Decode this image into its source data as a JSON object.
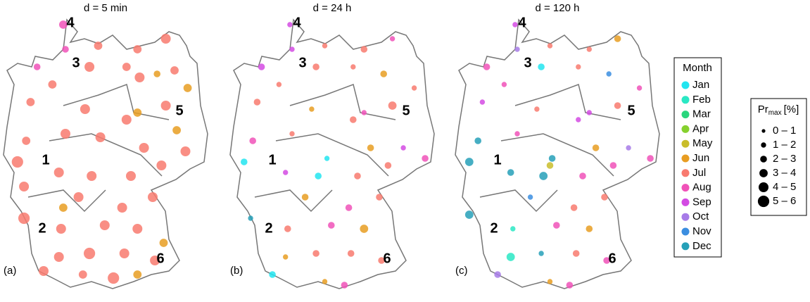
{
  "maps": [
    {
      "title": "d = 5 min",
      "tag": "(a)",
      "points": [
        [
          8.7,
          54.8,
          7,
          4
        ],
        [
          7.5,
          53.6,
          7,
          3
        ],
        [
          8.8,
          54.1,
          7,
          3
        ],
        [
          10.3,
          54.2,
          6,
          4
        ],
        [
          12.1,
          54.1,
          6,
          4
        ],
        [
          13.4,
          54.4,
          6,
          5
        ],
        [
          11.6,
          53.6,
          6,
          4
        ],
        [
          13.8,
          53.5,
          6,
          4
        ],
        [
          8.2,
          53.1,
          6,
          4
        ],
        [
          9.9,
          53.6,
          6,
          5
        ],
        [
          12.2,
          53.3,
          6,
          5
        ],
        [
          13.0,
          53.4,
          5,
          3
        ],
        [
          14.4,
          53.0,
          5,
          4
        ],
        [
          7.2,
          52.6,
          6,
          4
        ],
        [
          9.7,
          52.4,
          6,
          5
        ],
        [
          11.6,
          52.1,
          6,
          5
        ],
        [
          13.4,
          52.5,
          6,
          5
        ],
        [
          12.1,
          52.3,
          5,
          4
        ],
        [
          13.9,
          51.8,
          5,
          4
        ],
        [
          7.0,
          51.5,
          6,
          4
        ],
        [
          8.8,
          51.7,
          6,
          5
        ],
        [
          10.4,
          51.6,
          6,
          5
        ],
        [
          12.4,
          51.3,
          6,
          5
        ],
        [
          14.3,
          51.2,
          6,
          5
        ],
        [
          6.6,
          50.9,
          6,
          6
        ],
        [
          8.5,
          50.6,
          6,
          5
        ],
        [
          10.0,
          50.5,
          6,
          5
        ],
        [
          11.8,
          50.5,
          6,
          5
        ],
        [
          13.2,
          50.8,
          6,
          5
        ],
        [
          6.9,
          50.2,
          6,
          5
        ],
        [
          9.4,
          49.9,
          6,
          5
        ],
        [
          11.4,
          49.6,
          6,
          5
        ],
        [
          12.8,
          49.9,
          6,
          5
        ],
        [
          8.7,
          49.6,
          5,
          4
        ],
        [
          6.9,
          49.3,
          6,
          6
        ],
        [
          8.6,
          49.0,
          6,
          5
        ],
        [
          10.6,
          49.1,
          6,
          5
        ],
        [
          12.1,
          49.0,
          6,
          5
        ],
        [
          13.3,
          48.6,
          5,
          4
        ],
        [
          8.5,
          48.2,
          6,
          5
        ],
        [
          9.9,
          48.3,
          6,
          6
        ],
        [
          11.5,
          48.3,
          6,
          5
        ],
        [
          12.9,
          48.1,
          6,
          5
        ],
        [
          7.8,
          47.8,
          6,
          5
        ],
        [
          9.6,
          47.7,
          6,
          4
        ],
        [
          11.0,
          47.6,
          6,
          6
        ],
        [
          12.1,
          47.7,
          5,
          4
        ]
      ]
    },
    {
      "title": "d = 24 h",
      "tag": "(b)",
      "points": [
        [
          8.7,
          54.8,
          8,
          2
        ],
        [
          7.4,
          53.6,
          8,
          3
        ],
        [
          8.8,
          54.1,
          8,
          2
        ],
        [
          10.3,
          54.2,
          6,
          2
        ],
        [
          12.1,
          54.1,
          6,
          3
        ],
        [
          13.4,
          54.4,
          7,
          2
        ],
        [
          11.6,
          53.6,
          6,
          2
        ],
        [
          13.0,
          53.4,
          5,
          3
        ],
        [
          14.4,
          53.0,
          6,
          2
        ],
        [
          8.2,
          53.1,
          6,
          2
        ],
        [
          9.9,
          53.6,
          6,
          3
        ],
        [
          7.2,
          52.6,
          6,
          3
        ],
        [
          9.7,
          52.4,
          5,
          2
        ],
        [
          11.6,
          52.1,
          6,
          3
        ],
        [
          13.4,
          52.5,
          6,
          4
        ],
        [
          12.1,
          52.3,
          7,
          2
        ],
        [
          13.9,
          51.3,
          8,
          2
        ],
        [
          7.0,
          51.5,
          7,
          3
        ],
        [
          8.8,
          51.7,
          6,
          2
        ],
        [
          10.4,
          51.0,
          0,
          2
        ],
        [
          12.4,
          51.3,
          5,
          3
        ],
        [
          14.9,
          51.0,
          7,
          3
        ],
        [
          6.6,
          50.9,
          0,
          3
        ],
        [
          8.5,
          50.6,
          8,
          2
        ],
        [
          10.0,
          50.5,
          0,
          3
        ],
        [
          11.8,
          50.5,
          6,
          3
        ],
        [
          13.2,
          50.8,
          6,
          3
        ],
        [
          9.4,
          49.9,
          5,
          3
        ],
        [
          11.4,
          49.6,
          7,
          3
        ],
        [
          12.8,
          49.9,
          6,
          3
        ],
        [
          6.9,
          49.3,
          11,
          2
        ],
        [
          8.6,
          49.0,
          6,
          3
        ],
        [
          10.6,
          49.1,
          7,
          3
        ],
        [
          12.1,
          49.0,
          5,
          4
        ],
        [
          9.9,
          48.3,
          6,
          3
        ],
        [
          11.5,
          48.3,
          6,
          3
        ],
        [
          8.5,
          48.2,
          5,
          2
        ],
        [
          7.9,
          47.7,
          0,
          3
        ],
        [
          10.3,
          47.5,
          5,
          2
        ],
        [
          12.9,
          48.1,
          6,
          3
        ],
        [
          11.2,
          47.4,
          7,
          3
        ]
      ]
    },
    {
      "title": "d = 120 h",
      "tag": "(c)",
      "points": [
        [
          8.7,
          54.8,
          8,
          2
        ],
        [
          7.4,
          53.6,
          7,
          3
        ],
        [
          8.8,
          54.1,
          9,
          2
        ],
        [
          10.3,
          54.2,
          6,
          2
        ],
        [
          12.1,
          54.1,
          6,
          2
        ],
        [
          13.4,
          54.4,
          5,
          3
        ],
        [
          11.6,
          53.6,
          6,
          2
        ],
        [
          13.0,
          53.4,
          10,
          2
        ],
        [
          14.4,
          53.0,
          7,
          2
        ],
        [
          8.2,
          53.1,
          7,
          2
        ],
        [
          9.9,
          53.6,
          0,
          3
        ],
        [
          7.2,
          52.6,
          8,
          2
        ],
        [
          9.7,
          52.4,
          6,
          2
        ],
        [
          11.6,
          52.1,
          8,
          2
        ],
        [
          13.4,
          52.5,
          6,
          3
        ],
        [
          12.1,
          52.3,
          8,
          2
        ],
        [
          13.9,
          51.3,
          9,
          2
        ],
        [
          7.0,
          51.5,
          11,
          3
        ],
        [
          8.8,
          51.7,
          7,
          2
        ],
        [
          10.4,
          51.0,
          11,
          3
        ],
        [
          12.4,
          51.3,
          5,
          3
        ],
        [
          14.9,
          51.0,
          7,
          3
        ],
        [
          6.6,
          50.9,
          11,
          4
        ],
        [
          8.5,
          50.6,
          11,
          3
        ],
        [
          10.0,
          50.5,
          11,
          4
        ],
        [
          10.3,
          50.8,
          4,
          3
        ],
        [
          11.8,
          50.5,
          7,
          3
        ],
        [
          13.2,
          50.8,
          7,
          3
        ],
        [
          9.4,
          49.9,
          10,
          2
        ],
        [
          11.4,
          49.6,
          6,
          3
        ],
        [
          12.8,
          49.9,
          6,
          3
        ],
        [
          6.6,
          49.4,
          11,
          4
        ],
        [
          8.6,
          49.0,
          1,
          2
        ],
        [
          10.6,
          49.1,
          7,
          3
        ],
        [
          12.1,
          49.0,
          5,
          3
        ],
        [
          9.9,
          48.3,
          11,
          2
        ],
        [
          11.5,
          48.3,
          6,
          3
        ],
        [
          8.5,
          48.2,
          1,
          4
        ],
        [
          7.9,
          47.7,
          9,
          3
        ],
        [
          10.3,
          47.5,
          5,
          2
        ],
        [
          12.9,
          48.1,
          7,
          3
        ],
        [
          11.2,
          47.4,
          7,
          3
        ]
      ]
    }
  ],
  "site_labels": [
    "1",
    "2",
    "3",
    "4",
    "5",
    "6"
  ],
  "month_legend": {
    "title": "Month",
    "months": [
      "Jan",
      "Feb",
      "Mar",
      "Apr",
      "May",
      "Jun",
      "Jul",
      "Aug",
      "Sep",
      "Oct",
      "Nov",
      "Dec"
    ],
    "colors": [
      "#22e5f0",
      "#2ae8c4",
      "#2ad67d",
      "#86d12e",
      "#c9bd2a",
      "#e89d22",
      "#f87a6f",
      "#f052b8",
      "#d34be3",
      "#a77be8",
      "#3b8ee0",
      "#26a0b8"
    ]
  },
  "size_legend": {
    "title": "Pr",
    "title_sub": "max",
    "title_unit": "[%]",
    "classes": [
      "0 – 1",
      "1 – 2",
      "2 – 3",
      "3 – 4",
      "4 – 5",
      "5 – 6"
    ]
  }
}
